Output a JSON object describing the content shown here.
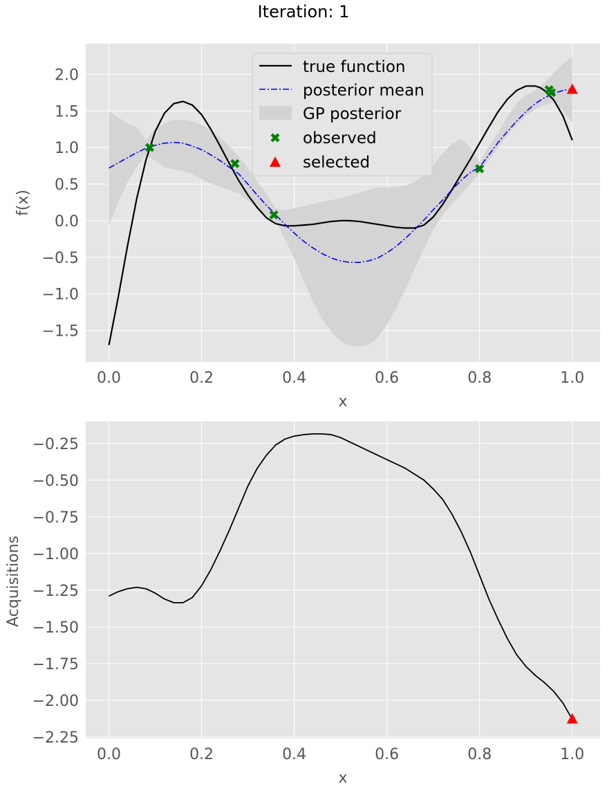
{
  "figure": {
    "suptitle": "Iteration: 1"
  },
  "colors": {
    "axes_background": "#E5E5E5",
    "grid": "#FFFFFF",
    "true_function": "#000000",
    "posterior_mean": "#0000FF",
    "gp_posterior": "#D3D3D3",
    "observed": "#008000",
    "selected": "#FF0000",
    "acquisition": "#000000"
  },
  "chart_data": [
    {
      "type": "line",
      "xlabel": "x",
      "ylabel": "f(x)",
      "xlim": [
        -0.05,
        1.06
      ],
      "ylim": [
        -1.93,
        2.42
      ],
      "xticks": [
        0.0,
        0.2,
        0.4,
        0.6,
        0.8,
        1.0
      ],
      "xtick_labels": [
        "0.0",
        "0.2",
        "0.4",
        "0.6",
        "0.8",
        "1.0"
      ],
      "yticks": [
        -1.5,
        -1.0,
        -0.5,
        0.0,
        0.5,
        1.0,
        1.5,
        2.0
      ],
      "ytick_labels": [
        "−1.5",
        "−1.0",
        "−0.5",
        "0.0",
        "0.5",
        "1.0",
        "1.5",
        "2.0"
      ],
      "grid": true,
      "legend": {
        "position": "top-center",
        "entries": [
          "true function",
          "posterior mean",
          "GP posterior",
          "observed",
          "selected"
        ]
      },
      "true_function": {
        "x": [
          0.0,
          0.02,
          0.04,
          0.06,
          0.08,
          0.1,
          0.12,
          0.14,
          0.16,
          0.18,
          0.2,
          0.22,
          0.24,
          0.26,
          0.28,
          0.3,
          0.32,
          0.34,
          0.36,
          0.38,
          0.4,
          0.42,
          0.44,
          0.46,
          0.48,
          0.5,
          0.52,
          0.54,
          0.56,
          0.58,
          0.6,
          0.62,
          0.64,
          0.66,
          0.68,
          0.7,
          0.72,
          0.74,
          0.76,
          0.78,
          0.8,
          0.82,
          0.84,
          0.86,
          0.88,
          0.9,
          0.92,
          0.93,
          0.94,
          0.96,
          0.98,
          1.0
        ],
        "y": [
          -1.7,
          -1.05,
          -0.35,
          0.3,
          0.83,
          1.22,
          1.47,
          1.6,
          1.63,
          1.58,
          1.45,
          1.25,
          1.02,
          0.78,
          0.55,
          0.35,
          0.18,
          0.04,
          -0.04,
          -0.07,
          -0.07,
          -0.06,
          -0.05,
          -0.03,
          -0.01,
          0.0,
          0.0,
          -0.01,
          -0.03,
          -0.05,
          -0.07,
          -0.09,
          -0.1,
          -0.1,
          -0.06,
          0.05,
          0.22,
          0.42,
          0.63,
          0.84,
          1.06,
          1.28,
          1.49,
          1.66,
          1.78,
          1.84,
          1.84,
          1.82,
          1.78,
          1.65,
          1.43,
          1.1
        ]
      },
      "posterior_mean": {
        "x": [
          0.0,
          0.02,
          0.04,
          0.06,
          0.08,
          0.1,
          0.12,
          0.14,
          0.16,
          0.18,
          0.2,
          0.22,
          0.24,
          0.26,
          0.28,
          0.3,
          0.32,
          0.34,
          0.36,
          0.38,
          0.4,
          0.42,
          0.44,
          0.46,
          0.48,
          0.5,
          0.52,
          0.54,
          0.56,
          0.58,
          0.6,
          0.62,
          0.64,
          0.66,
          0.68,
          0.7,
          0.72,
          0.74,
          0.76,
          0.78,
          0.8,
          0.82,
          0.84,
          0.86,
          0.88,
          0.9,
          0.92,
          0.94,
          0.96,
          0.98,
          1.0
        ],
        "y": [
          0.72,
          0.79,
          0.86,
          0.93,
          0.99,
          1.03,
          1.06,
          1.07,
          1.06,
          1.02,
          0.97,
          0.9,
          0.82,
          0.73,
          0.64,
          0.5,
          0.35,
          0.21,
          0.08,
          -0.05,
          -0.17,
          -0.28,
          -0.37,
          -0.45,
          -0.51,
          -0.55,
          -0.57,
          -0.57,
          -0.55,
          -0.51,
          -0.44,
          -0.35,
          -0.24,
          -0.12,
          0.01,
          0.15,
          0.28,
          0.42,
          0.55,
          0.66,
          0.73,
          0.9,
          1.07,
          1.22,
          1.36,
          1.49,
          1.6,
          1.68,
          1.74,
          1.78,
          1.8
        ]
      },
      "gp_posterior_band": {
        "x": [
          0.0,
          0.02,
          0.04,
          0.06,
          0.08,
          0.1,
          0.12,
          0.14,
          0.16,
          0.18,
          0.2,
          0.22,
          0.24,
          0.26,
          0.28,
          0.3,
          0.32,
          0.34,
          0.36,
          0.38,
          0.4,
          0.42,
          0.44,
          0.46,
          0.48,
          0.5,
          0.52,
          0.54,
          0.56,
          0.58,
          0.6,
          0.62,
          0.64,
          0.66,
          0.68,
          0.7,
          0.72,
          0.74,
          0.76,
          0.78,
          0.8,
          0.82,
          0.84,
          0.86,
          0.88,
          0.9,
          0.92,
          0.94,
          0.96,
          0.98,
          1.0
        ],
        "lower": [
          -0.06,
          0.25,
          0.52,
          0.74,
          0.9,
          0.82,
          0.73,
          0.7,
          0.68,
          0.64,
          0.57,
          0.51,
          0.46,
          0.42,
          0.37,
          0.28,
          0.17,
          0.06,
          -0.01,
          -0.25,
          -0.52,
          -0.82,
          -1.1,
          -1.34,
          -1.52,
          -1.65,
          -1.71,
          -1.72,
          -1.7,
          -1.6,
          -1.42,
          -1.2,
          -0.94,
          -0.66,
          -0.38,
          -0.12,
          0.08,
          0.23,
          0.36,
          0.5,
          0.66,
          0.83,
          1.0,
          1.17,
          1.31,
          1.43,
          1.52,
          1.58,
          1.62,
          1.5,
          1.34
        ],
        "upper": [
          1.49,
          1.41,
          1.33,
          1.28,
          1.1,
          1.26,
          1.33,
          1.38,
          1.38,
          1.36,
          1.31,
          1.24,
          1.14,
          1.02,
          0.88,
          0.72,
          0.54,
          0.37,
          0.17,
          0.14,
          0.17,
          0.2,
          0.23,
          0.26,
          0.28,
          0.31,
          0.34,
          0.38,
          0.42,
          0.45,
          0.46,
          0.46,
          0.48,
          0.53,
          0.62,
          0.75,
          0.92,
          1.05,
          1.12,
          1.0,
          0.8,
          1.02,
          1.2,
          1.42,
          1.61,
          1.72,
          1.78,
          1.88,
          2.02,
          2.14,
          2.24
        ]
      },
      "observed": {
        "x": [
          0.088,
          0.272,
          0.356,
          0.8,
          0.95,
          0.955
        ],
        "y": [
          1.0,
          0.78,
          0.08,
          0.71,
          1.79,
          1.75
        ]
      },
      "selected": {
        "x": [
          1.0
        ],
        "y": [
          1.79
        ]
      }
    },
    {
      "type": "line",
      "xlabel": "x",
      "ylabel": "Acquisitions",
      "xlim": [
        -0.05,
        1.06
      ],
      "ylim": [
        -2.26,
        -0.1
      ],
      "xticks": [
        0.0,
        0.2,
        0.4,
        0.6,
        0.8,
        1.0
      ],
      "xtick_labels": [
        "0.0",
        "0.2",
        "0.4",
        "0.6",
        "0.8",
        "1.0"
      ],
      "yticks": [
        -2.25,
        -2.0,
        -1.75,
        -1.5,
        -1.25,
        -1.0,
        -0.75,
        -0.5,
        -0.25
      ],
      "ytick_labels": [
        "−2.25",
        "−2.00",
        "−1.75",
        "−1.50",
        "−1.25",
        "−1.00",
        "−0.75",
        "−0.50",
        "−0.25"
      ],
      "grid": true,
      "acquisition": {
        "x": [
          0.0,
          0.02,
          0.04,
          0.06,
          0.08,
          0.1,
          0.12,
          0.14,
          0.16,
          0.18,
          0.2,
          0.22,
          0.24,
          0.26,
          0.28,
          0.3,
          0.32,
          0.34,
          0.36,
          0.38,
          0.4,
          0.42,
          0.44,
          0.46,
          0.48,
          0.5,
          0.52,
          0.54,
          0.56,
          0.58,
          0.6,
          0.62,
          0.64,
          0.66,
          0.68,
          0.7,
          0.72,
          0.74,
          0.76,
          0.78,
          0.8,
          0.82,
          0.84,
          0.86,
          0.88,
          0.9,
          0.92,
          0.94,
          0.96,
          0.98,
          1.0
        ],
        "y": [
          -1.29,
          -1.26,
          -1.24,
          -1.23,
          -1.24,
          -1.27,
          -1.31,
          -1.335,
          -1.335,
          -1.3,
          -1.22,
          -1.11,
          -0.98,
          -0.84,
          -0.69,
          -0.54,
          -0.42,
          -0.33,
          -0.26,
          -0.22,
          -0.2,
          -0.19,
          -0.185,
          -0.185,
          -0.19,
          -0.21,
          -0.24,
          -0.27,
          -0.3,
          -0.33,
          -0.36,
          -0.39,
          -0.42,
          -0.46,
          -0.5,
          -0.56,
          -0.63,
          -0.73,
          -0.85,
          -0.99,
          -1.15,
          -1.31,
          -1.45,
          -1.58,
          -1.69,
          -1.77,
          -1.83,
          -1.88,
          -1.94,
          -2.02,
          -2.13
        ]
      },
      "selected": {
        "x": [
          1.0
        ],
        "y": [
          -2.13
        ]
      }
    }
  ]
}
